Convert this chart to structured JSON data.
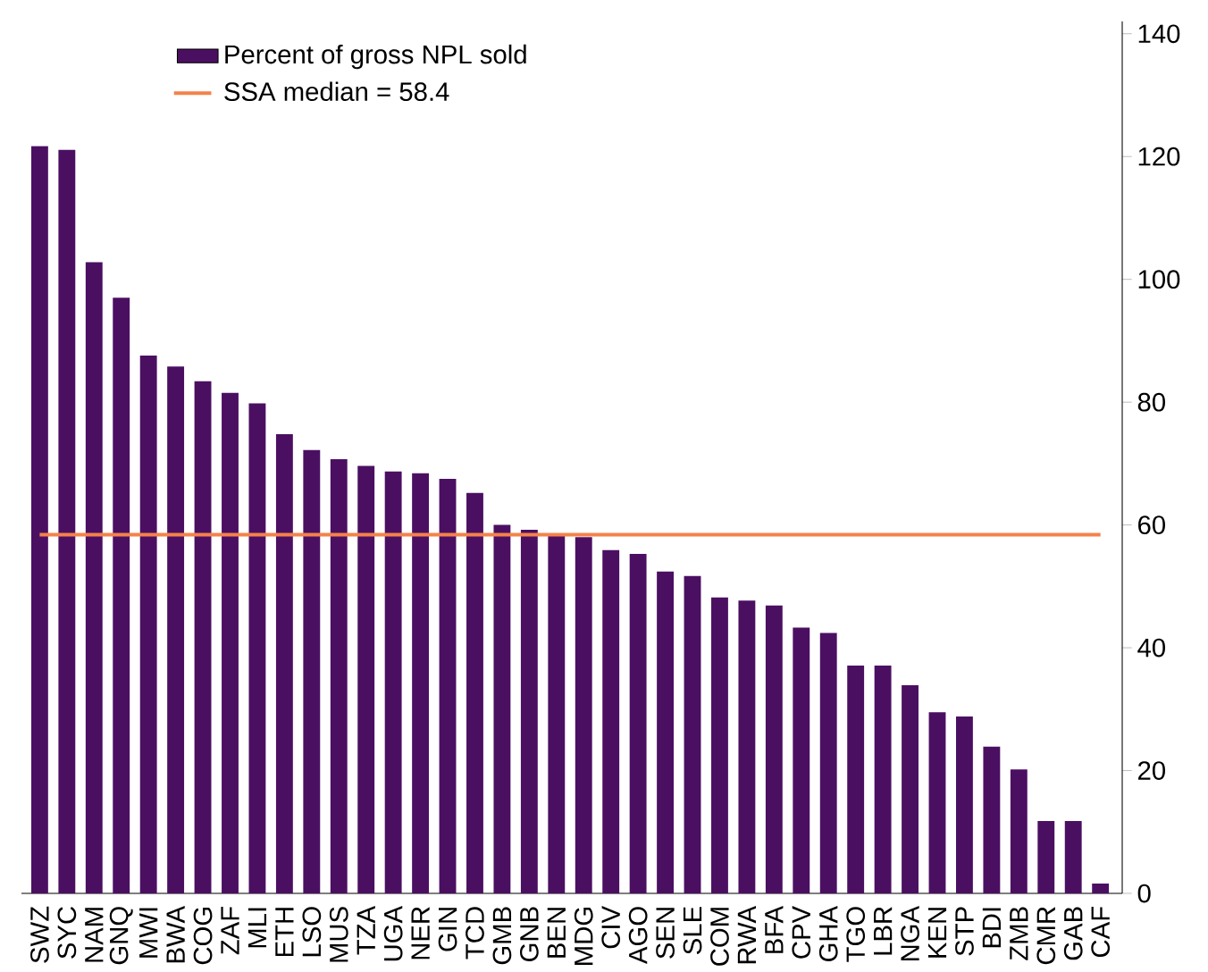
{
  "chart_data": {
    "type": "bar",
    "categories": [
      "SWZ",
      "SYC",
      "NAM",
      "GNQ",
      "MWI",
      "BWA",
      "COG",
      "ZAF",
      "MLI",
      "ETH",
      "LSO",
      "MUS",
      "TZA",
      "UGA",
      "NER",
      "GIN",
      "TCD",
      "GMB",
      "GNB",
      "BEN",
      "MDG",
      "CIV",
      "AGO",
      "SEN",
      "SLE",
      "COM",
      "RWA",
      "BFA",
      "CPV",
      "GHA",
      "TGO",
      "LBR",
      "NGA",
      "KEN",
      "STP",
      "BDI",
      "ZMB",
      "CMR",
      "GAB",
      "CAF"
    ],
    "series": [
      {
        "name": "Percent of gross NPL sold",
        "color": "#4b0f62",
        "values": [
          121.7,
          121.1,
          102.8,
          97,
          87.6,
          85.8,
          83.4,
          81.5,
          79.8,
          74.8,
          72.2,
          70.7,
          69.6,
          68.7,
          68.4,
          67.5,
          65.2,
          60,
          59.2,
          58.3,
          58,
          55.9,
          55.3,
          52.4,
          51.7,
          48.2,
          47.7,
          46.9,
          43.3,
          42.4,
          37.1,
          37.1,
          33.9,
          29.5,
          28.8,
          23.9,
          20.2,
          11.8,
          11.8,
          1.6
        ]
      }
    ],
    "ylim": [
      0,
      142
    ],
    "yticks": [
      0,
      20,
      40,
      60,
      80,
      100,
      120,
      140
    ],
    "ref_lines": [
      {
        "axis": "y",
        "value": 58.4,
        "label": "SSA median = 58.4",
        "color": "#f4824a",
        "line_style": "solid"
      }
    ],
    "legend": "top left",
    "grid": false
  }
}
